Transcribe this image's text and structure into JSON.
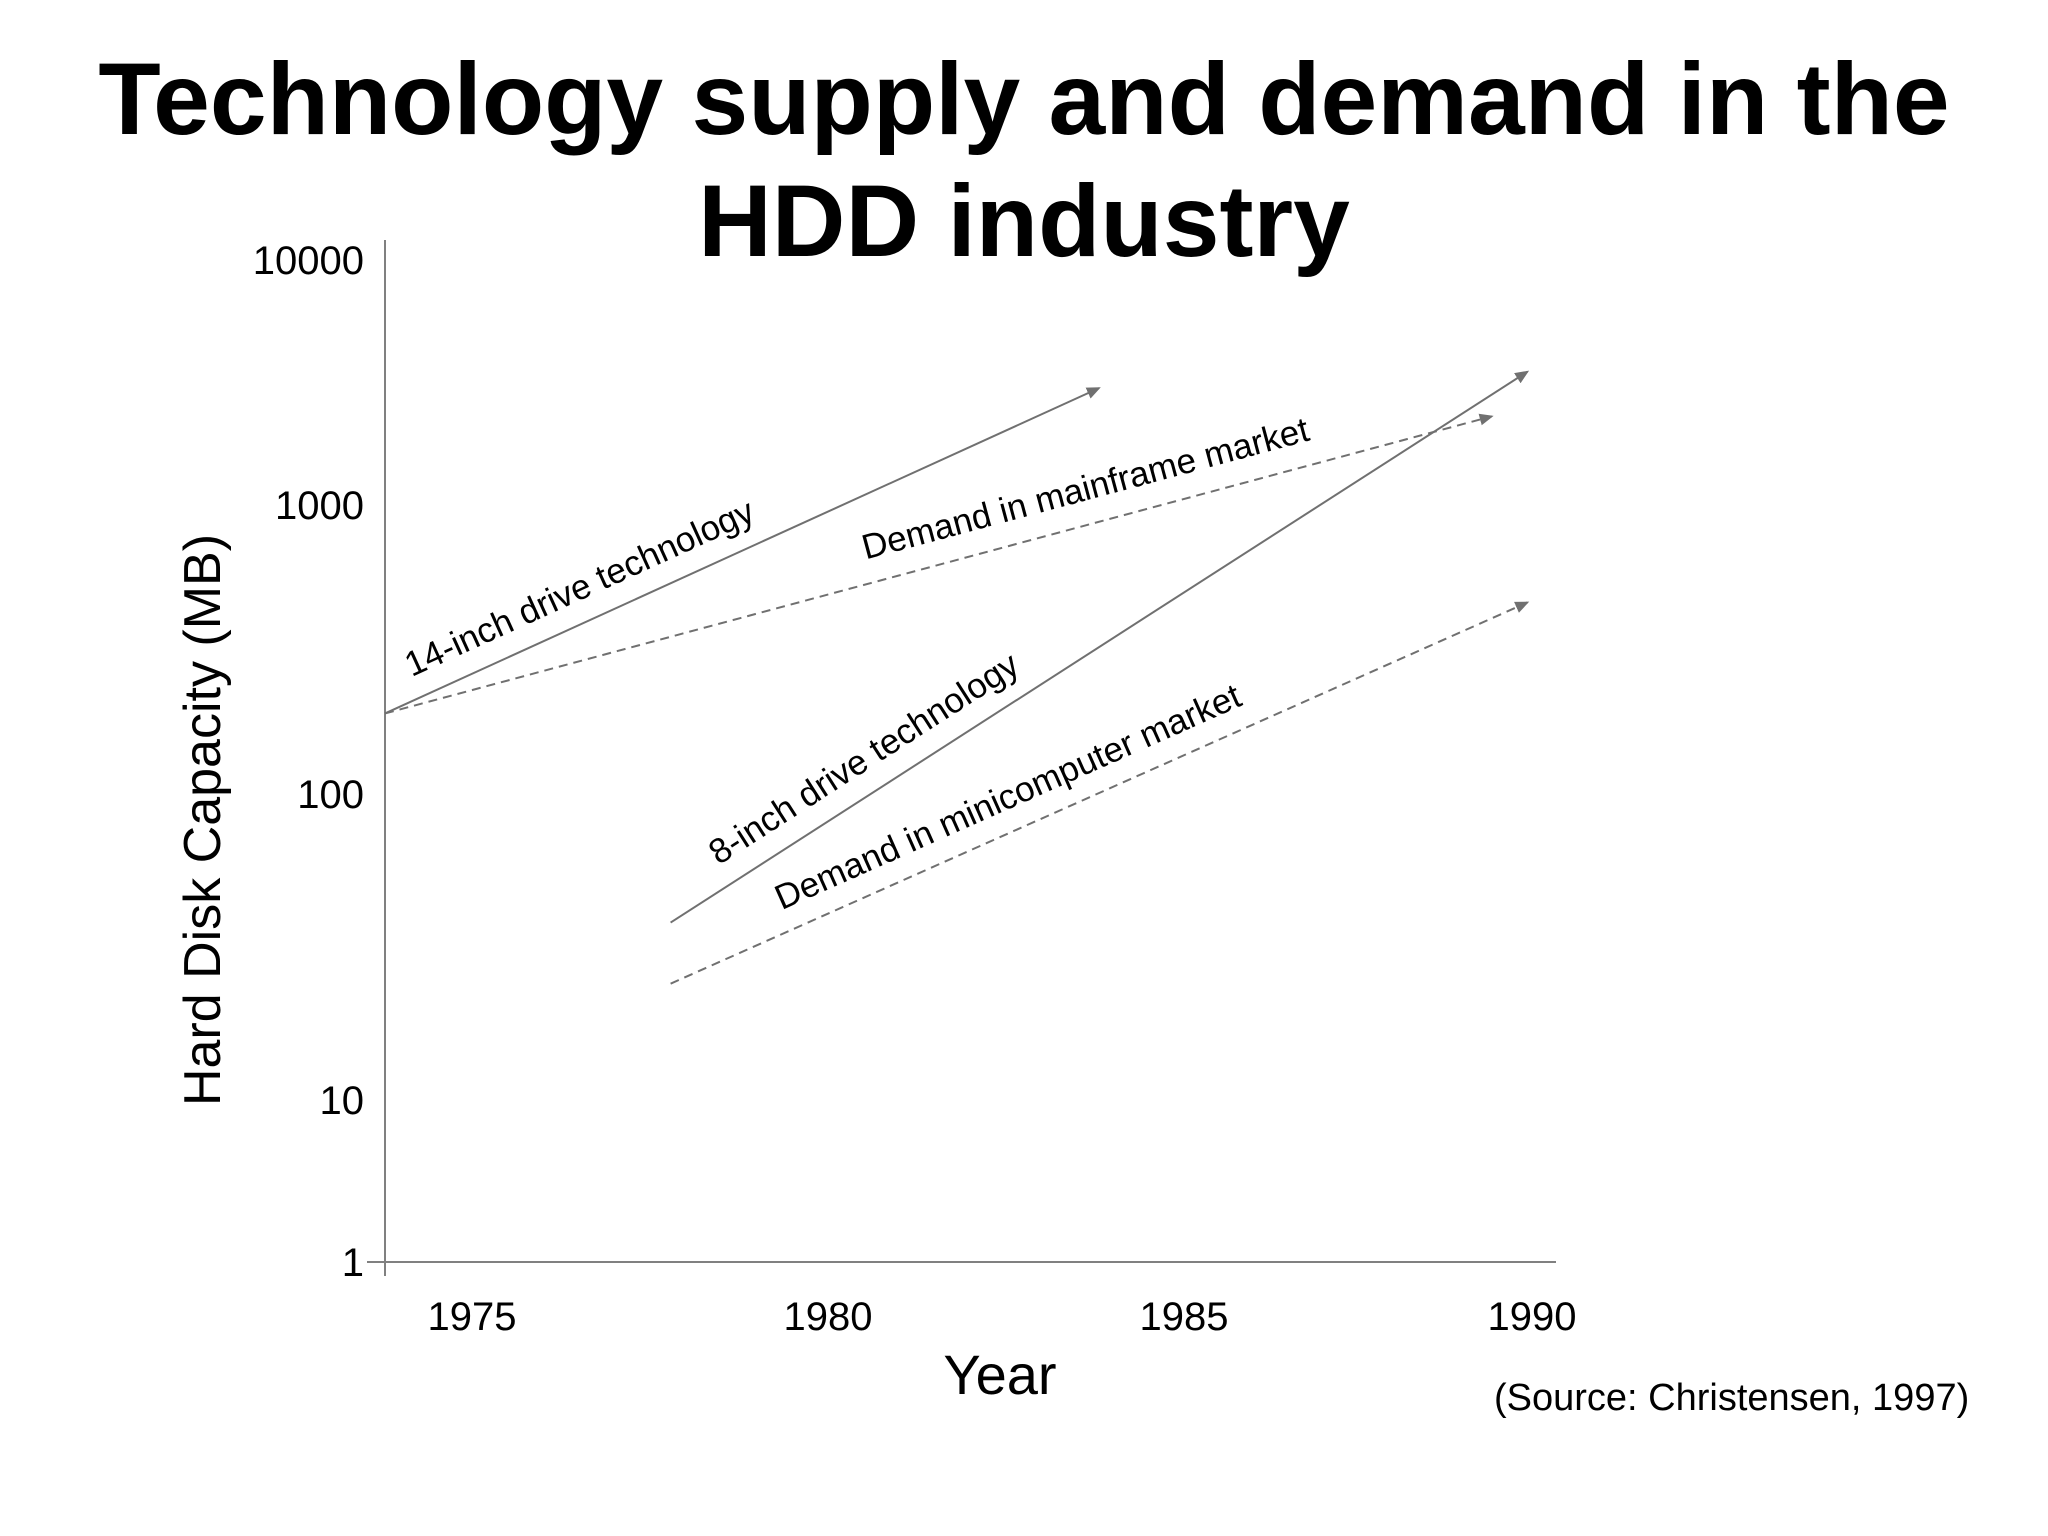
{
  "title_line1": "Technology supply and demand in the",
  "title_line2": "HDD industry",
  "source": "(Source: Christensen, 1997)",
  "colors": {
    "line": "#707070",
    "axis": "#808080",
    "text": "#000000"
  },
  "chart_data": {
    "type": "line",
    "title": "Technology supply and demand in the HDD industry",
    "xlabel": "Year",
    "ylabel": "Hard Disk Capacity (MB)",
    "y_scale": "log",
    "xlim": [
      1973.8,
      1990.3
    ],
    "ylim": [
      1,
      10000
    ],
    "x_ticks": [
      "1975",
      "1980",
      "1985",
      "1990"
    ],
    "y_ticks": [
      "1",
      "10",
      "100",
      "1000",
      "10000"
    ],
    "grid": false,
    "legend": "none",
    "series": [
      {
        "name": "14-inch drive technology",
        "style": "solid",
        "x": [
          1974,
          1984
        ],
        "y": [
          190,
          3000
        ]
      },
      {
        "name": "Demand in mainframe market",
        "style": "dashed",
        "x": [
          1974,
          1989.5
        ],
        "y": [
          190,
          2300
        ]
      },
      {
        "name": "8-inch drive technology",
        "style": "solid",
        "x": [
          1978,
          1990
        ],
        "y": [
          38,
          3500
        ]
      },
      {
        "name": "Demand in minicomputer market",
        "style": "dashed",
        "x": [
          1978,
          1990
        ],
        "y": [
          24,
          460
        ]
      }
    ]
  }
}
